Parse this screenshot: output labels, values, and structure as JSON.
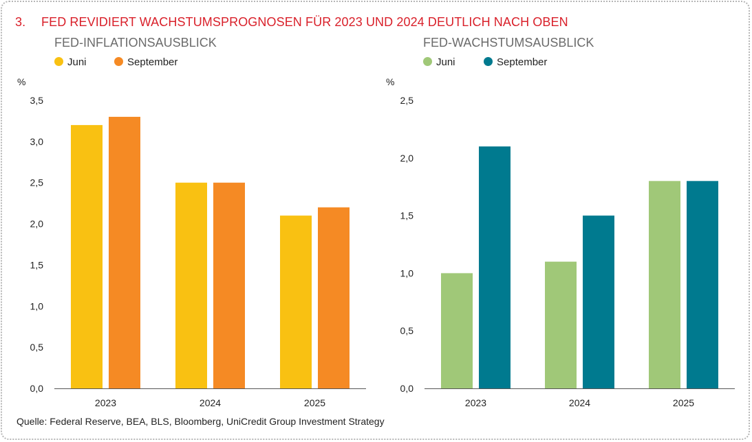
{
  "title": {
    "number": "3.",
    "text": "FED REVIDIERT WACHSTUMSPROGNOSEN FÜR 2023 UND 2024 DEUTLICH NACH OBEN"
  },
  "source": "Quelle: Federal Reserve, BEA, BLS, Bloomberg, UniCredit Group Investment Strategy",
  "chart_data": [
    {
      "type": "bar",
      "title": "FED-INFLATIONSAUSBLICK",
      "ylabel": "%",
      "categories": [
        "2023",
        "2024",
        "2025"
      ],
      "series": [
        {
          "name": "Juni",
          "color": "#f9c112",
          "values": [
            3.2,
            2.5,
            2.1
          ]
        },
        {
          "name": "September",
          "color": "#f58a24",
          "values": [
            3.3,
            2.5,
            2.2
          ]
        }
      ],
      "ylim": [
        0,
        3.5
      ],
      "yticks": [
        "0,0",
        "0,5",
        "1,0",
        "1,5",
        "2,0",
        "2,5",
        "3,0",
        "3,5"
      ],
      "grid": false,
      "legend": "top-left"
    },
    {
      "type": "bar",
      "title": "FED-WACHSTUMSAUSBLICK",
      "ylabel": "%",
      "categories": [
        "2023",
        "2024",
        "2025"
      ],
      "series": [
        {
          "name": "Juni",
          "color": "#a0c878",
          "values": [
            1.0,
            1.1,
            1.8
          ]
        },
        {
          "name": "September",
          "color": "#007a8f",
          "values": [
            2.1,
            1.5,
            1.8
          ]
        }
      ],
      "ylim": [
        0,
        2.5
      ],
      "yticks": [
        "0,0",
        "0,5",
        "1,0",
        "1,5",
        "2,0",
        "2,5"
      ],
      "grid": false,
      "legend": "top-left"
    }
  ]
}
